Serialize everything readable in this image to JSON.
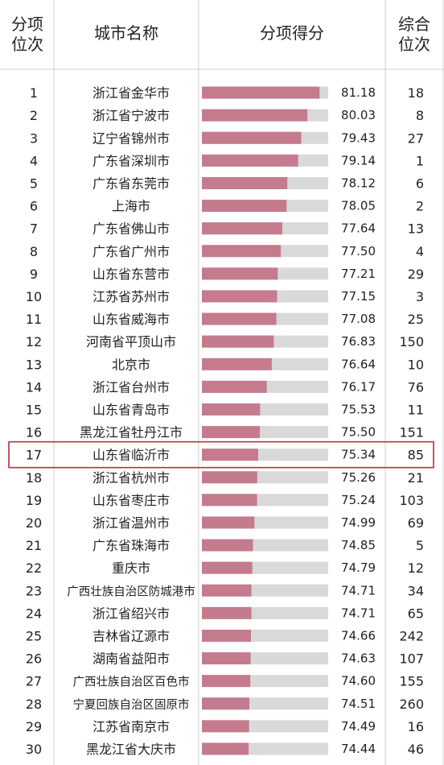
{
  "headers": {
    "rank_line1": "分项",
    "rank_line2": "位次",
    "city": "城市名称",
    "score": "分项得分",
    "overall_line1": "综合",
    "overall_line2": "位次"
  },
  "colors": {
    "bar": "#c47b8e",
    "bar_bg": "#d9d9d9",
    "highlight_border": "#b0323a",
    "grid": "#cfcfcf"
  },
  "highlight_rank": 17,
  "chart_data": {
    "type": "table",
    "bar_range": [
      70,
      82
    ],
    "rows": [
      {
        "rank": "1",
        "city": "浙江省金华市",
        "score": 81.18,
        "score_label": "81.18",
        "overall": "18"
      },
      {
        "rank": "2",
        "city": "浙江省宁波市",
        "score": 80.03,
        "score_label": "80.03",
        "overall": "8"
      },
      {
        "rank": "3",
        "city": "辽宁省锦州市",
        "score": 79.43,
        "score_label": "79.43",
        "overall": "27"
      },
      {
        "rank": "4",
        "city": "广东省深圳市",
        "score": 79.14,
        "score_label": "79.14",
        "overall": "1"
      },
      {
        "rank": "5",
        "city": "广东省东莞市",
        "score": 78.12,
        "score_label": "78.12",
        "overall": "6"
      },
      {
        "rank": "6",
        "city": "上海市",
        "score": 78.05,
        "score_label": "78.05",
        "overall": "2"
      },
      {
        "rank": "7",
        "city": "广东省佛山市",
        "score": 77.64,
        "score_label": "77.64",
        "overall": "13"
      },
      {
        "rank": "8",
        "city": "广东省广州市",
        "score": 77.5,
        "score_label": "77.50",
        "overall": "4"
      },
      {
        "rank": "9",
        "city": "山东省东营市",
        "score": 77.21,
        "score_label": "77.21",
        "overall": "29"
      },
      {
        "rank": "10",
        "city": "江苏省苏州市",
        "score": 77.15,
        "score_label": "77.15",
        "overall": "3"
      },
      {
        "rank": "11",
        "city": "山东省威海市",
        "score": 77.08,
        "score_label": "77.08",
        "overall": "25"
      },
      {
        "rank": "12",
        "city": "河南省平顶山市",
        "score": 76.83,
        "score_label": "76.83",
        "overall": "150"
      },
      {
        "rank": "13",
        "city": "北京市",
        "score": 76.64,
        "score_label": "76.64",
        "overall": "10"
      },
      {
        "rank": "14",
        "city": "浙江省台州市",
        "score": 76.17,
        "score_label": "76.17",
        "overall": "76"
      },
      {
        "rank": "15",
        "city": "山东省青岛市",
        "score": 75.53,
        "score_label": "75.53",
        "overall": "11"
      },
      {
        "rank": "16",
        "city": "黑龙江省牡丹江市",
        "score": 75.5,
        "score_label": "75.50",
        "overall": "151"
      },
      {
        "rank": "17",
        "city": "山东省临沂市",
        "score": 75.34,
        "score_label": "75.34",
        "overall": "85"
      },
      {
        "rank": "18",
        "city": "浙江省杭州市",
        "score": 75.26,
        "score_label": "75.26",
        "overall": "21"
      },
      {
        "rank": "19",
        "city": "山东省枣庄市",
        "score": 75.24,
        "score_label": "75.24",
        "overall": "103"
      },
      {
        "rank": "20",
        "city": "浙江省温州市",
        "score": 74.99,
        "score_label": "74.99",
        "overall": "69"
      },
      {
        "rank": "21",
        "city": "广东省珠海市",
        "score": 74.85,
        "score_label": "74.85",
        "overall": "5"
      },
      {
        "rank": "22",
        "city": "重庆市",
        "score": 74.79,
        "score_label": "74.79",
        "overall": "12"
      },
      {
        "rank": "23",
        "city": "广西壮族自治区防城港市",
        "score": 74.71,
        "score_label": "74.71",
        "overall": "34"
      },
      {
        "rank": "24",
        "city": "浙江省绍兴市",
        "score": 74.71,
        "score_label": "74.71",
        "overall": "65"
      },
      {
        "rank": "25",
        "city": "吉林省辽源市",
        "score": 74.66,
        "score_label": "74.66",
        "overall": "242"
      },
      {
        "rank": "26",
        "city": "湖南省益阳市",
        "score": 74.63,
        "score_label": "74.63",
        "overall": "107"
      },
      {
        "rank": "27",
        "city": "广西壮族自治区百色市",
        "score": 74.6,
        "score_label": "74.60",
        "overall": "155"
      },
      {
        "rank": "28",
        "city": "宁夏回族自治区固原市",
        "score": 74.51,
        "score_label": "74.51",
        "overall": "260"
      },
      {
        "rank": "29",
        "city": "江苏省南京市",
        "score": 74.49,
        "score_label": "74.49",
        "overall": "16"
      },
      {
        "rank": "30",
        "city": "黑龙江省大庆市",
        "score": 74.44,
        "score_label": "74.44",
        "overall": "46"
      }
    ]
  }
}
